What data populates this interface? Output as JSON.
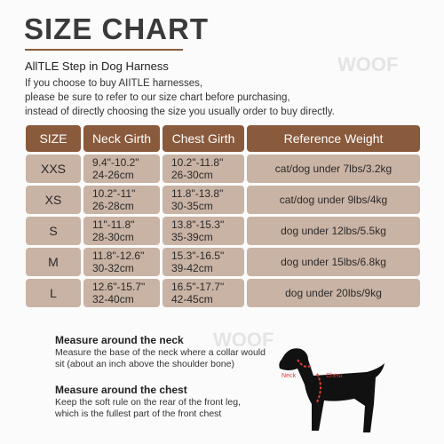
{
  "header": {
    "title": "SIZE CHART",
    "subtitle": "AllTLE Step in Dog Harness",
    "intro": [
      "If you choose to buy AIITLE harnesses,",
      "please be sure to refer to our size chart before purchasing,",
      "instead of directly choosing the size you usually order to buy directly."
    ]
  },
  "watermark": "WOOF",
  "table": {
    "columns": [
      "SIZE",
      "Neck Girth",
      "Chest Girth",
      "Reference Weight"
    ],
    "rows": [
      [
        "XXS",
        [
          "9.4\"-10.2\"",
          "24-26cm"
        ],
        [
          "10.2\"-11.8\"",
          "26-30cm"
        ],
        "cat/dog under 7lbs/3.2kg"
      ],
      [
        "XS",
        [
          "10.2\"-11\"",
          "26-28cm"
        ],
        [
          "11.8\"-13.8\"",
          "30-35cm"
        ],
        "cat/dog under 9lbs/4kg"
      ],
      [
        "S",
        [
          "11\"-11.8\"",
          "28-30cm"
        ],
        [
          "13.8\"-15.3\"",
          "35-39cm"
        ],
        "dog under 12lbs/5.5kg"
      ],
      [
        "M",
        [
          "11.8\"-12.6\"",
          "30-32cm"
        ],
        [
          "15.3\"-16.5\"",
          "39-42cm"
        ],
        "dog under 15lbs/6.8kg"
      ],
      [
        "L",
        [
          "12.6\"-15.7\"",
          "32-40cm"
        ],
        [
          "16.5\"-17.7\"",
          "42-45cm"
        ],
        "dog under 20lbs/9kg"
      ]
    ]
  },
  "measure": [
    {
      "heading": "Measure  around the neck",
      "text": [
        "Measure the base of the neck where a collar would",
        "sit (about an inch above the shoulder bone)"
      ]
    },
    {
      "heading": "Measure around the chest",
      "text": [
        "Keep the soft rule on the rear of the front leg,",
        "which is the fullest part of the front chest"
      ]
    }
  ],
  "dog_labels": [
    "Neck",
    "Chest"
  ]
}
